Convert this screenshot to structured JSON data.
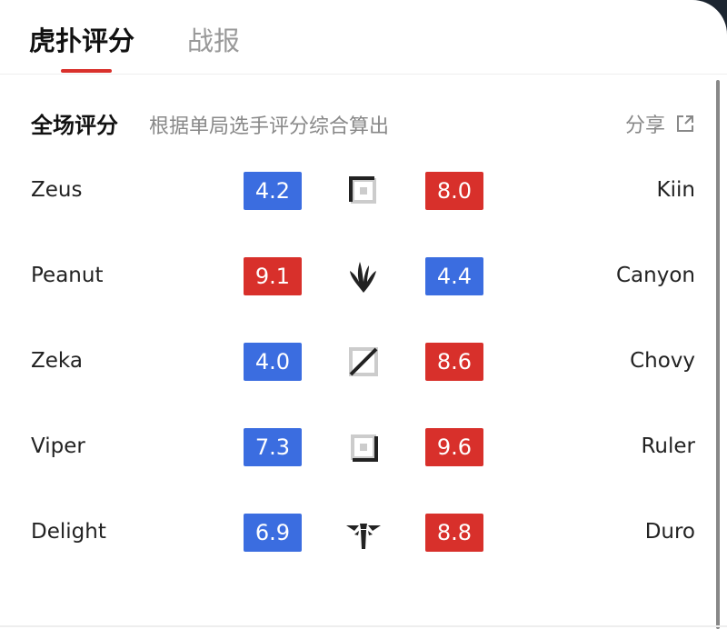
{
  "tabs": [
    {
      "label": "虎扑评分",
      "active": true
    },
    {
      "label": "战报",
      "active": false
    }
  ],
  "section": {
    "title": "全场评分",
    "subtitle": "根据单局选手评分综合算出",
    "share_label": "分享",
    "share_icon": "external-link-icon"
  },
  "colors": {
    "blue": "#3b6de0",
    "red": "#d8302b",
    "accent": "#d9302b"
  },
  "rows": [
    {
      "left_player": "Zeus",
      "left_score": "4.2",
      "left_color": "blue",
      "role_icon": "top-lane-icon",
      "right_score": "8.0",
      "right_color": "red",
      "right_player": "Kiin"
    },
    {
      "left_player": "Peanut",
      "left_score": "9.1",
      "left_color": "red",
      "role_icon": "jungle-icon",
      "right_score": "4.4",
      "right_color": "blue",
      "right_player": "Canyon"
    },
    {
      "left_player": "Zeka",
      "left_score": "4.0",
      "left_color": "blue",
      "role_icon": "mid-lane-icon",
      "right_score": "8.6",
      "right_color": "red",
      "right_player": "Chovy"
    },
    {
      "left_player": "Viper",
      "left_score": "7.3",
      "left_color": "blue",
      "role_icon": "bot-lane-icon",
      "right_score": "9.6",
      "right_color": "red",
      "right_player": "Ruler"
    },
    {
      "left_player": "Delight",
      "left_score": "6.9",
      "left_color": "blue",
      "role_icon": "support-icon",
      "right_score": "8.8",
      "right_color": "red",
      "right_player": "Duro"
    }
  ]
}
